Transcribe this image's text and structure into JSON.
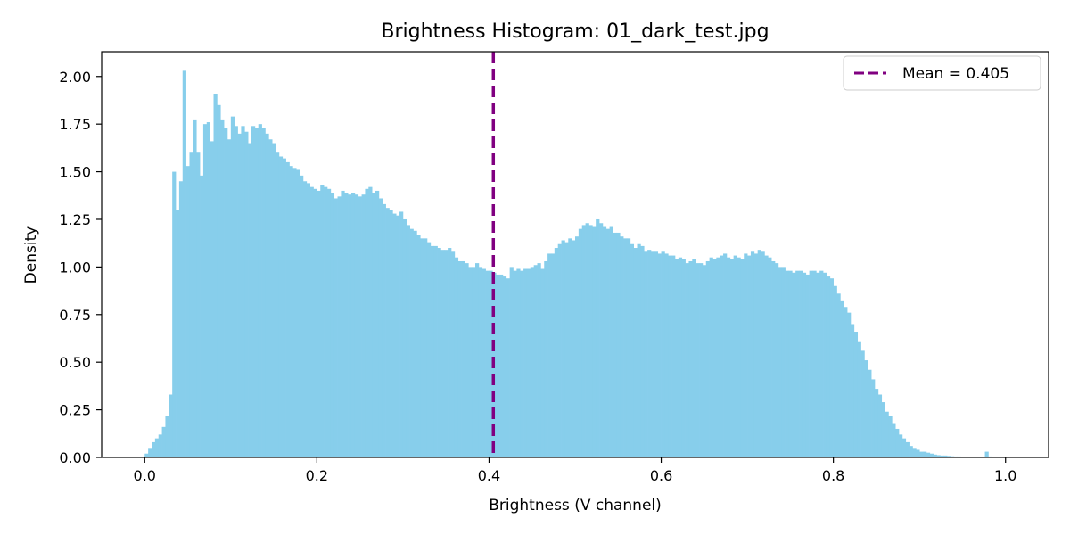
{
  "chart_data": {
    "type": "bar",
    "title": "Brightness Histogram: 01_dark_test.jpg",
    "xlabel": "Brightness (V channel)",
    "ylabel": "Density",
    "xlim": [
      -0.05,
      1.05
    ],
    "ylim": [
      0,
      2.13
    ],
    "x_ticks": [
      0.0,
      0.2,
      0.4,
      0.6,
      0.8,
      1.0
    ],
    "x_tick_labels": [
      "0.0",
      "0.2",
      "0.4",
      "0.6",
      "0.8",
      "1.0"
    ],
    "y_ticks": [
      0,
      0.25,
      0.5,
      0.75,
      1.0,
      1.25,
      1.5,
      1.75,
      2.0
    ],
    "y_tick_labels": [
      "0.00",
      "0.25",
      "0.50",
      "0.75",
      "1.00",
      "1.25",
      "1.50",
      "1.75",
      "2.00"
    ],
    "grid": false,
    "bins": {
      "start": 0.0,
      "width": 0.004,
      "density": [
        0.02,
        0.05,
        0.08,
        0.1,
        0.12,
        0.16,
        0.22,
        0.33,
        1.5,
        1.3,
        1.45,
        2.03,
        1.53,
        1.6,
        1.77,
        1.6,
        1.48,
        1.75,
        1.76,
        1.66,
        1.91,
        1.85,
        1.77,
        1.73,
        1.67,
        1.79,
        1.74,
        1.7,
        1.74,
        1.71,
        1.65,
        1.74,
        1.73,
        1.75,
        1.73,
        1.7,
        1.67,
        1.65,
        1.6,
        1.58,
        1.57,
        1.55,
        1.53,
        1.52,
        1.51,
        1.48,
        1.45,
        1.44,
        1.42,
        1.41,
        1.4,
        1.43,
        1.42,
        1.41,
        1.39,
        1.36,
        1.37,
        1.4,
        1.39,
        1.38,
        1.39,
        1.38,
        1.37,
        1.38,
        1.41,
        1.42,
        1.39,
        1.4,
        1.36,
        1.33,
        1.31,
        1.3,
        1.28,
        1.27,
        1.29,
        1.25,
        1.22,
        1.2,
        1.19,
        1.17,
        1.15,
        1.15,
        1.13,
        1.11,
        1.11,
        1.1,
        1.09,
        1.09,
        1.1,
        1.08,
        1.05,
        1.03,
        1.03,
        1.02,
        1.0,
        1.0,
        1.02,
        1.0,
        0.99,
        0.98,
        0.98,
        0.97,
        0.96,
        0.96,
        0.95,
        0.94,
        1.0,
        0.98,
        0.99,
        0.98,
        0.99,
        0.99,
        1.0,
        1.01,
        1.02,
        0.99,
        1.03,
        1.07,
        1.07,
        1.1,
        1.12,
        1.14,
        1.13,
        1.15,
        1.14,
        1.16,
        1.2,
        1.22,
        1.23,
        1.22,
        1.21,
        1.25,
        1.23,
        1.21,
        1.2,
        1.21,
        1.18,
        1.18,
        1.16,
        1.15,
        1.15,
        1.12,
        1.1,
        1.12,
        1.11,
        1.08,
        1.09,
        1.08,
        1.08,
        1.07,
        1.08,
        1.07,
        1.06,
        1.06,
        1.04,
        1.05,
        1.04,
        1.02,
        1.03,
        1.04,
        1.02,
        1.02,
        1.01,
        1.03,
        1.05,
        1.04,
        1.05,
        1.06,
        1.07,
        1.05,
        1.04,
        1.06,
        1.05,
        1.04,
        1.07,
        1.06,
        1.08,
        1.07,
        1.09,
        1.08,
        1.06,
        1.05,
        1.03,
        1.02,
        1.0,
        1.0,
        0.98,
        0.98,
        0.97,
        0.98,
        0.98,
        0.97,
        0.96,
        0.98,
        0.98,
        0.97,
        0.98,
        0.97,
        0.95,
        0.94,
        0.9,
        0.86,
        0.82,
        0.79,
        0.76,
        0.7,
        0.66,
        0.61,
        0.56,
        0.51,
        0.46,
        0.41,
        0.36,
        0.33,
        0.29,
        0.24,
        0.22,
        0.18,
        0.15,
        0.12,
        0.1,
        0.08,
        0.06,
        0.05,
        0.04,
        0.03,
        0.03,
        0.025,
        0.02,
        0.015,
        0.012,
        0.01,
        0.01,
        0.008,
        0.006,
        0.005,
        0.005,
        0.004,
        0.004,
        0.003,
        0.003,
        0.002,
        0.002,
        0.002,
        0.03,
        0.005
      ],
      "color": "#87ceeb"
    },
    "mean_line": {
      "x": 0.405,
      "color": "#800080",
      "style": "dashed"
    },
    "legend": {
      "entries": [
        "Mean = 0.405"
      ],
      "placement": "top-right"
    }
  }
}
